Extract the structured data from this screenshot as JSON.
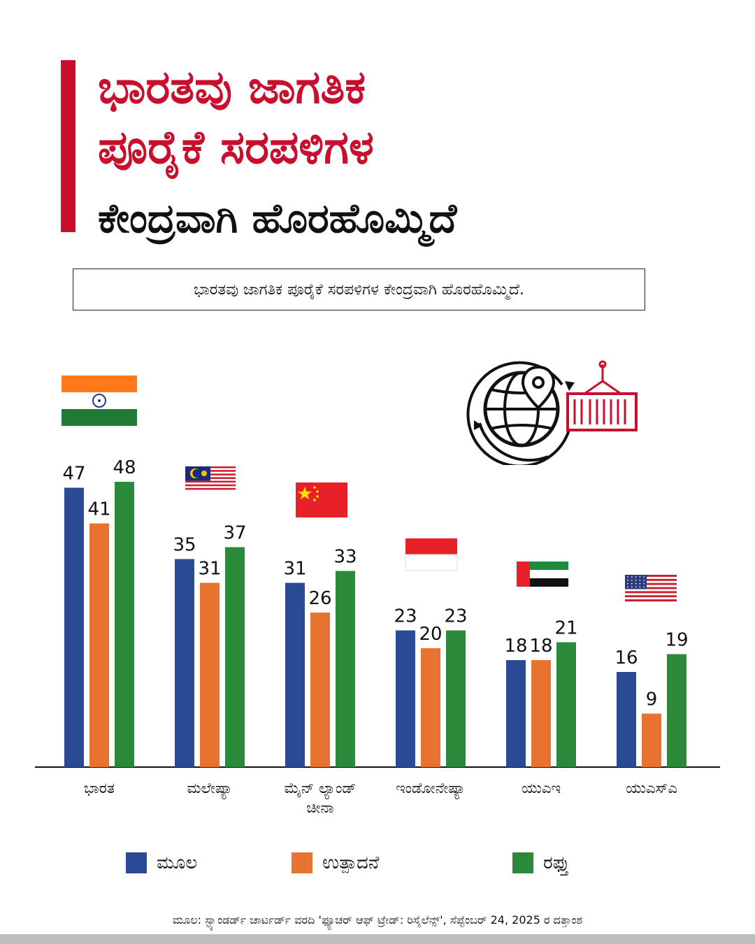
{
  "header": {
    "title_line1": "ಭಾರತವು ಜಾಗತಿಕ",
    "title_line2": "ಪೂರೈಕೆ ಸರಪಳಿಗಳ",
    "title_line3": "ಕೇಂದ್ರವಾಗಿ ಹೊರಹೊಮ್ಮಿದೆ",
    "subtitle": "ಭಾರತವು ಜಾಗತಿಕ ಪೂರೈಕೆ ಸರಪಳಿಗಳ ಕೇಂದ್ರವಾಗಿ ಹೊರಹೊಮ್ಮಿದೆ."
  },
  "colors": {
    "accent": "#c8102e",
    "series_blue": "#2b4a96",
    "series_orange": "#e87230",
    "series_green": "#2a8a3a"
  },
  "icons": {
    "trade_icon": "globe-location-container-icon"
  },
  "chart_data": {
    "type": "bar",
    "categories": [
      "ಭಾರತ",
      "ಮಲೇಷ್ಯಾ",
      "ಮೈನ್ ಲ್ಯಾಂಡ್ ಚೀನಾ",
      "ಇಂಡೋನೇಷ್ಯಾ",
      "ಯುಎಇ",
      "ಯುಎಸ್ಎ"
    ],
    "category_flags": [
      "india-flag",
      "malaysia-flag",
      "china-flag",
      "indonesia-flag",
      "uae-flag",
      "usa-flag"
    ],
    "series": [
      {
        "name": "ಮೂಲ",
        "color": "#2b4a96",
        "values": [
          47,
          35,
          31,
          23,
          18,
          16
        ]
      },
      {
        "name": "ಉತ್ಪಾದನೆ",
        "color": "#e87230",
        "values": [
          41,
          31,
          26,
          20,
          18,
          9
        ]
      },
      {
        "name": "ರಫ್ತು",
        "color": "#2a8a3a",
        "values": [
          48,
          37,
          33,
          23,
          21,
          19
        ]
      }
    ],
    "ylim": [
      0,
      50
    ],
    "grid": false,
    "legend_position": "bottom"
  },
  "footer": {
    "source": "ಮೂಲ: ಸ್ಟ್ಯಾಂಡರ್ಡ್ ಚಾರ್ಟರ್ಡ್ ವರದಿ 'ಫ್ಯೂಚರ್ ಆಫ್ ಟ್ರೇಡ್: ರಿಸೈಲೆನ್ಸ್', ಸೆಪ್ಟೆಂಬರ್ 24, 2025 ರ ದತ್ತಾಂಶ"
  }
}
